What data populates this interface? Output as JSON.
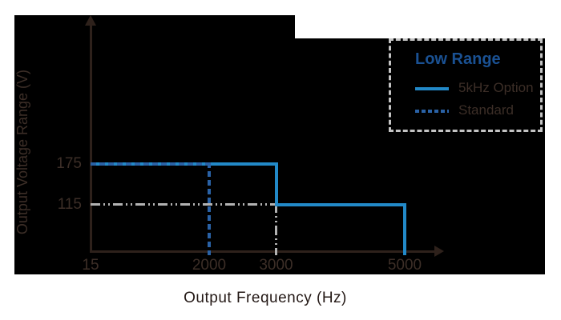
{
  "colors": {
    "background_block": "#000000",
    "axis": "#2e211b",
    "solid_line": "#2289c8",
    "dashed_line": "#2a62a6",
    "guide_line": "#b2b2b2",
    "legend_title": "#1a5193",
    "dark_text": "#3c2e27",
    "footer_text": "#231815",
    "legend_border": "#c4c4c4"
  },
  "legend": {
    "title": "Low Range",
    "items": [
      {
        "label": "5kHz Option",
        "style": "solid"
      },
      {
        "label": "Standard",
        "style": "dashed"
      }
    ]
  },
  "chart_data": {
    "type": "line",
    "subtype": "step-boundary",
    "title": "",
    "xlabel": "Output Frequency (Hz)",
    "ylabel": "Output Voltage Range (V)",
    "x_ticks": [
      15,
      2000,
      3000,
      5000
    ],
    "y_ticks": [
      175,
      115
    ],
    "xlim": [
      15,
      5000
    ],
    "ylim": [
      0,
      200
    ],
    "grid": false,
    "legend_position": "top-right",
    "series": [
      {
        "name": "guide-115V",
        "style": "dashdotdot",
        "color": "#b2b2b2",
        "thickness": 3,
        "points": [
          [
            15,
            115
          ],
          [
            3000,
            115
          ],
          [
            3000,
            0
          ]
        ]
      },
      {
        "name": "5kHz Option",
        "style": "solid",
        "color": "#2289c8",
        "thickness": 4,
        "points": [
          [
            15,
            175
          ],
          [
            3000,
            175
          ],
          [
            3000,
            115
          ],
          [
            5000,
            115
          ],
          [
            5000,
            0
          ]
        ]
      },
      {
        "name": "Standard",
        "style": "dashed",
        "color": "#2a62a6",
        "thickness": 4,
        "points": [
          [
            15,
            175
          ],
          [
            2000,
            175
          ],
          [
            2000,
            0
          ]
        ]
      }
    ]
  }
}
